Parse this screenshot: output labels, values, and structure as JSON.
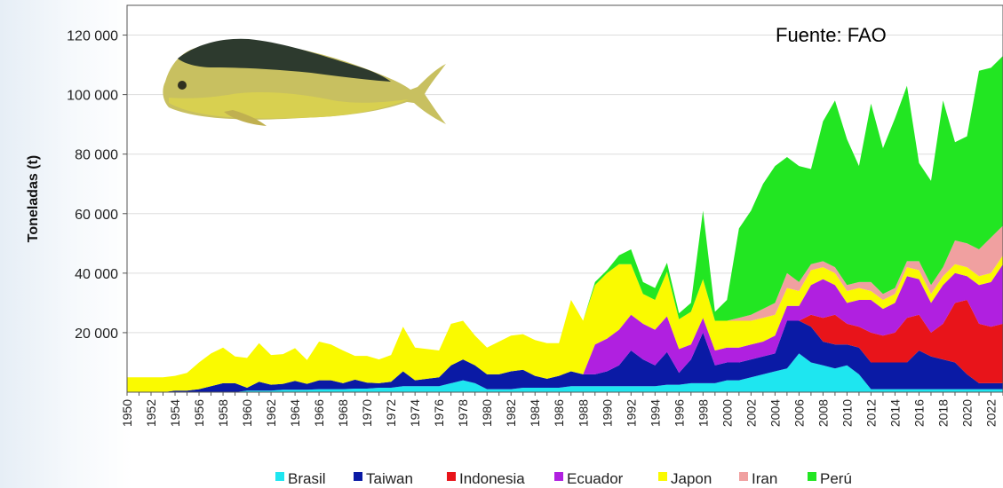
{
  "chart_data": {
    "type": "area",
    "stacked": true,
    "ylabel": "Toneladas (t)",
    "xlabel": "",
    "ylim": [
      0,
      130000
    ],
    "yticks": [
      20000,
      40000,
      60000,
      80000,
      100000,
      120000
    ],
    "ytick_labels": [
      "20 000",
      "40 000",
      "60 000",
      "80 000",
      "100 000",
      "120 000"
    ],
    "annotation": "Fuente: FAO",
    "legend_position": "bottom",
    "x": [
      1950,
      1951,
      1952,
      1953,
      1954,
      1955,
      1956,
      1957,
      1958,
      1959,
      1960,
      1961,
      1962,
      1963,
      1964,
      1965,
      1966,
      1967,
      1968,
      1969,
      1970,
      1971,
      1972,
      1973,
      1974,
      1975,
      1976,
      1977,
      1978,
      1979,
      1980,
      1981,
      1982,
      1983,
      1984,
      1985,
      1986,
      1987,
      1988,
      1989,
      1990,
      1991,
      1992,
      1993,
      1994,
      1995,
      1996,
      1997,
      1998,
      1999,
      2000,
      2001,
      2002,
      2003,
      2004,
      2005,
      2006,
      2007,
      2008,
      2009,
      2010,
      2011,
      2012,
      2013,
      2014,
      2015,
      2016,
      2017,
      2018,
      2019,
      2020,
      2021,
      2022,
      2023
    ],
    "xtick_labels": [
      "1950",
      "1952",
      "1954",
      "1956",
      "1958",
      "1960",
      "1962",
      "1964",
      "1966",
      "1968",
      "1970",
      "1972",
      "1974",
      "1976",
      "1978",
      "1980",
      "1982",
      "1984",
      "1986",
      "1988",
      "1990",
      "1992",
      "1994",
      "1996",
      "1998",
      "2000",
      "2002",
      "2004",
      "2006",
      "2008",
      "2010",
      "2012",
      "2014",
      "2016",
      "2018",
      "2020",
      "2022"
    ],
    "series": [
      {
        "name": "Brasil",
        "color": "#1ee6f0",
        "values": [
          0,
          0,
          0,
          0,
          0,
          0,
          0,
          0,
          0,
          0,
          500,
          500,
          500,
          800,
          800,
          800,
          1000,
          1000,
          1000,
          1200,
          1200,
          1500,
          1500,
          2000,
          2000,
          2000,
          2000,
          3000,
          4000,
          3000,
          1000,
          1000,
          1000,
          1500,
          1500,
          1500,
          1500,
          2000,
          2000,
          2000,
          2000,
          2000,
          2000,
          2000,
          2000,
          2500,
          2500,
          3000,
          3000,
          3000,
          4000,
          4000,
          5000,
          6000,
          7000,
          8000,
          13000,
          10000,
          9000,
          8000,
          9000,
          6000,
          1000,
          1000,
          1000,
          1000,
          1000,
          1000,
          1000,
          1000,
          1000,
          1000,
          1000,
          1000
        ]
      },
      {
        "name": "Taiwan",
        "color": "#0a1aa5",
        "values": [
          0,
          0,
          0,
          0,
          500,
          500,
          1000,
          2000,
          3000,
          3000,
          1000,
          3000,
          2000,
          2000,
          3000,
          2000,
          3000,
          3000,
          2000,
          3000,
          2000,
          1500,
          2000,
          5000,
          2000,
          2500,
          3000,
          6000,
          7000,
          6000,
          5000,
          5000,
          6000,
          6000,
          4000,
          3000,
          4000,
          5000,
          4000,
          4000,
          5000,
          7000,
          12000,
          9000,
          7000,
          11000,
          4000,
          8000,
          17000,
          6000,
          6000,
          6000,
          6000,
          6000,
          6000,
          16000,
          11000,
          12000,
          8000,
          8000,
          7000,
          9000,
          9000,
          9000,
          9000,
          9000,
          13000,
          11000,
          10000,
          9000,
          5000,
          2000,
          2000,
          2000
        ]
      },
      {
        "name": "Indonesia",
        "color": "#e8141a",
        "values": [
          0,
          0,
          0,
          0,
          0,
          0,
          0,
          0,
          0,
          0,
          0,
          0,
          0,
          0,
          0,
          0,
          0,
          0,
          0,
          0,
          0,
          0,
          0,
          0,
          0,
          0,
          0,
          0,
          0,
          0,
          0,
          0,
          0,
          0,
          0,
          0,
          0,
          0,
          0,
          0,
          0,
          0,
          0,
          0,
          0,
          0,
          0,
          0,
          0,
          0,
          0,
          0,
          0,
          0,
          0,
          0,
          0,
          4000,
          8000,
          10000,
          7000,
          7000,
          10000,
          9000,
          10000,
          15000,
          12000,
          8000,
          12000,
          20000,
          25000,
          20000,
          19000,
          20000
        ]
      },
      {
        "name": "Ecuador",
        "color": "#b020e0",
        "values": [
          0,
          0,
          0,
          0,
          0,
          0,
          0,
          0,
          0,
          0,
          0,
          0,
          0,
          0,
          0,
          0,
          0,
          0,
          0,
          0,
          0,
          0,
          0,
          0,
          0,
          0,
          0,
          0,
          0,
          0,
          0,
          0,
          0,
          0,
          0,
          0,
          0,
          0,
          0,
          10000,
          11000,
          12000,
          12000,
          12000,
          12000,
          12000,
          8000,
          5000,
          5000,
          5000,
          5000,
          5000,
          5000,
          5000,
          6000,
          5000,
          5000,
          10000,
          13000,
          10000,
          7000,
          9000,
          11000,
          9000,
          10000,
          14000,
          12000,
          10000,
          13000,
          10000,
          8000,
          13000,
          15000,
          20000
        ]
      },
      {
        "name": "Japon",
        "color": "#fafa00",
        "values": [
          5000,
          5000,
          5000,
          5000,
          5000,
          6000,
          9000,
          11000,
          12000,
          9000,
          10000,
          13000,
          10000,
          10000,
          11000,
          8000,
          13000,
          12000,
          11000,
          8000,
          9000,
          8000,
          9000,
          15000,
          11000,
          10000,
          9000,
          14000,
          13000,
          10000,
          9000,
          11000,
          12000,
          12000,
          12000,
          12000,
          11000,
          24000,
          18000,
          20000,
          22000,
          22000,
          17000,
          10000,
          10000,
          15000,
          10000,
          11000,
          13000,
          10000,
          9000,
          9000,
          8000,
          8000,
          7000,
          6000,
          5000,
          5000,
          4000,
          4000,
          4000,
          4000,
          3000,
          3000,
          3000,
          3000,
          3000,
          3000,
          3000,
          3000,
          3000,
          3000,
          3000,
          3000
        ]
      },
      {
        "name": "Iran",
        "color": "#f0a0a0",
        "values": [
          0,
          0,
          0,
          0,
          0,
          0,
          0,
          0,
          0,
          0,
          0,
          0,
          0,
          0,
          0,
          0,
          0,
          0,
          0,
          0,
          0,
          0,
          0,
          0,
          0,
          0,
          0,
          0,
          0,
          0,
          0,
          0,
          0,
          0,
          0,
          0,
          0,
          0,
          0,
          0,
          0,
          0,
          0,
          0,
          0,
          0,
          0,
          0,
          0,
          0,
          0,
          1000,
          2000,
          3000,
          4000,
          5000,
          3000,
          2000,
          2000,
          2000,
          2000,
          2000,
          3000,
          2000,
          2000,
          2000,
          3000,
          3000,
          3000,
          8000,
          8000,
          9000,
          12000,
          10000
        ]
      },
      {
        "name": "Perú",
        "color": "#22e622",
        "values": [
          0,
          0,
          0,
          0,
          0,
          0,
          0,
          0,
          0,
          0,
          0,
          0,
          0,
          0,
          0,
          0,
          0,
          0,
          0,
          0,
          0,
          0,
          0,
          0,
          0,
          0,
          0,
          0,
          0,
          0,
          0,
          0,
          0,
          0,
          0,
          0,
          0,
          0,
          0,
          1000,
          1000,
          3000,
          5000,
          4000,
          4000,
          3000,
          2000,
          3000,
          23000,
          3000,
          7000,
          30000,
          35000,
          42000,
          46000,
          39000,
          39000,
          32000,
          47000,
          56000,
          49000,
          39000,
          60000,
          49000,
          57000,
          59000,
          33000,
          35000,
          56000,
          33000,
          36000,
          60000,
          57000,
          57000
        ]
      }
    ]
  }
}
